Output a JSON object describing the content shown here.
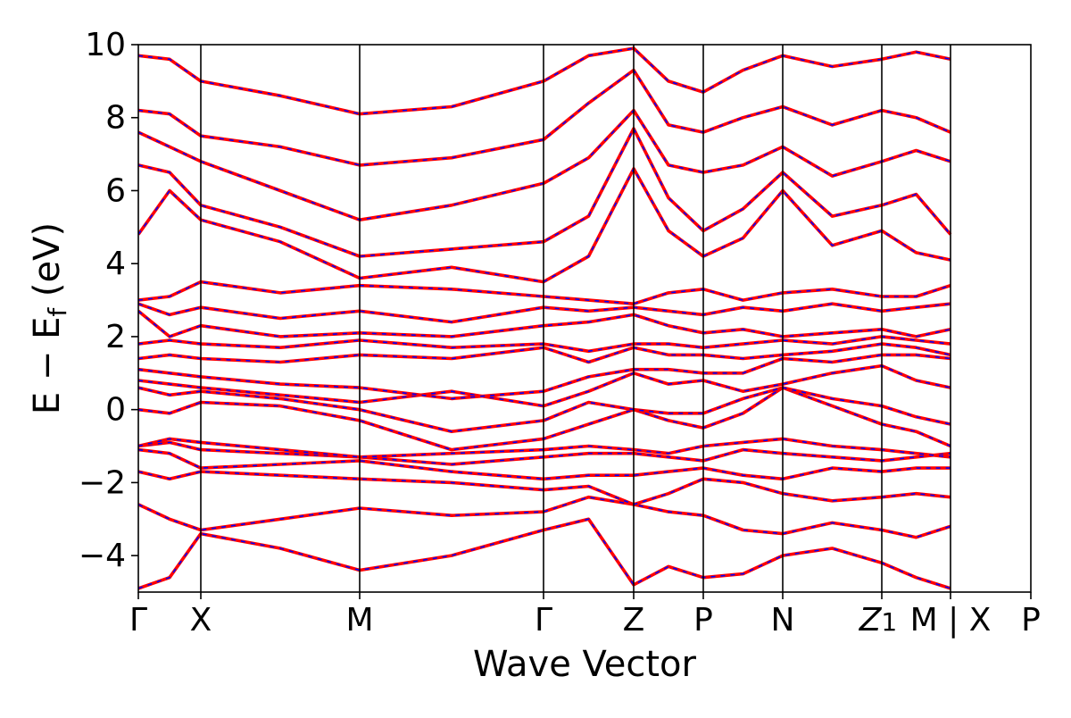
{
  "chart_data": {
    "type": "line",
    "title": "",
    "xlabel": "Wave Vector",
    "ylabel": {
      "main": "E − E",
      "sub": "f",
      "unit": " (eV)"
    },
    "ylim": [
      -5,
      10
    ],
    "yticks": [
      {
        "value": 10,
        "label": "10"
      },
      {
        "value": 8,
        "label": "8"
      },
      {
        "value": 6,
        "label": "6"
      },
      {
        "value": 4,
        "label": "4"
      },
      {
        "value": 2,
        "label": "2"
      },
      {
        "value": 0,
        "label": "0"
      },
      {
        "value": -2,
        "label": "−2"
      },
      {
        "value": -4,
        "label": "−4"
      }
    ],
    "xlim": [
      0,
      1
    ],
    "kpoints": [
      {
        "pos": 0.0,
        "label": "Γ",
        "sub": ""
      },
      {
        "pos": 0.07,
        "label": "X",
        "sub": ""
      },
      {
        "pos": 0.248,
        "label": "M",
        "sub": ""
      },
      {
        "pos": 0.454,
        "label": "Γ",
        "sub": ""
      },
      {
        "pos": 0.555,
        "label": "Z",
        "sub": ""
      },
      {
        "pos": 0.633,
        "label": "P",
        "sub": ""
      },
      {
        "pos": 0.722,
        "label": "N",
        "sub": ""
      },
      {
        "pos": 0.833,
        "label": "Z",
        "sub": "1"
      },
      {
        "pos": 0.91,
        "label": "M | X",
        "sub": ""
      },
      {
        "pos": 1.0,
        "label": "P",
        "sub": ""
      }
    ],
    "grid": false,
    "legend": "none",
    "series_styles": [
      {
        "color": "#ff0000",
        "style": "solid"
      },
      {
        "color": "#0000ff",
        "style": "dashed"
      }
    ],
    "bands": [
      [
        -4.9,
        -4.6,
        -3.4,
        -3.8,
        -4.4,
        -4.0,
        -3.3,
        -3.0,
        -4.8,
        -4.3,
        -4.6,
        -4.5,
        -4.0,
        -3.8,
        -4.2,
        -4.6,
        -4.9
      ],
      [
        -2.6,
        -3.0,
        -3.3,
        -3.0,
        -2.7,
        -2.9,
        -2.8,
        -2.4,
        -2.6,
        -2.8,
        -2.9,
        -3.3,
        -3.4,
        -3.1,
        -3.3,
        -3.5,
        -3.2
      ],
      [
        -1.7,
        -1.9,
        -1.7,
        -1.8,
        -1.9,
        -2.0,
        -2.2,
        -2.1,
        -2.6,
        -2.3,
        -1.9,
        -2.0,
        -2.3,
        -2.5,
        -2.4,
        -2.3,
        -2.4
      ],
      [
        -1.1,
        -1.2,
        -1.6,
        -1.5,
        -1.4,
        -1.7,
        -1.9,
        -1.8,
        -1.8,
        -1.7,
        -1.6,
        -1.8,
        -1.9,
        -1.6,
        -1.7,
        -1.6,
        -1.6
      ],
      [
        -1.0,
        -0.9,
        -1.1,
        -1.2,
        -1.3,
        -1.5,
        -1.3,
        -1.2,
        -1.2,
        -1.3,
        -1.4,
        -1.1,
        -1.2,
        -1.3,
        -1.4,
        -1.3,
        -1.2
      ],
      [
        -1.0,
        -0.8,
        -0.9,
        -1.1,
        -1.3,
        -1.2,
        -1.1,
        -1.0,
        -1.1,
        -1.2,
        -1.0,
        -0.9,
        -0.8,
        -1.0,
        -1.1,
        -1.2,
        -1.3
      ],
      [
        0.0,
        -0.1,
        0.2,
        0.1,
        -0.3,
        -1.1,
        -0.8,
        -0.4,
        0.0,
        -0.3,
        -0.5,
        -0.1,
        0.6,
        0.1,
        -0.4,
        -0.6,
        -1.0
      ],
      [
        0.6,
        0.4,
        0.5,
        0.3,
        0.0,
        -0.6,
        -0.3,
        0.2,
        0.0,
        -0.1,
        -0.1,
        0.3,
        0.6,
        0.3,
        0.1,
        -0.2,
        -0.4
      ],
      [
        0.8,
        0.7,
        0.6,
        0.4,
        0.2,
        0.5,
        0.1,
        0.5,
        1.0,
        0.7,
        0.8,
        0.5,
        0.7,
        1.0,
        1.2,
        0.8,
        0.6
      ],
      [
        1.1,
        1.0,
        0.9,
        0.7,
        0.6,
        0.3,
        0.5,
        0.9,
        1.1,
        1.1,
        1.0,
        1.0,
        1.4,
        1.3,
        1.5,
        1.5,
        1.4
      ],
      [
        1.4,
        1.5,
        1.4,
        1.3,
        1.5,
        1.4,
        1.7,
        1.3,
        1.7,
        1.5,
        1.5,
        1.4,
        1.5,
        1.6,
        1.8,
        1.7,
        1.5
      ],
      [
        1.8,
        1.9,
        1.8,
        1.7,
        1.9,
        1.7,
        1.8,
        1.6,
        1.8,
        1.8,
        1.7,
        1.8,
        1.9,
        1.8,
        2.0,
        1.9,
        1.8
      ],
      [
        2.7,
        2.0,
        2.3,
        2.0,
        2.1,
        2.0,
        2.3,
        2.4,
        2.6,
        2.3,
        2.1,
        2.2,
        2.0,
        2.1,
        2.2,
        2.0,
        2.2
      ],
      [
        2.9,
        2.6,
        2.8,
        2.5,
        2.7,
        2.4,
        2.8,
        2.7,
        2.8,
        2.7,
        2.6,
        2.8,
        2.7,
        2.9,
        2.7,
        2.8,
        2.9
      ],
      [
        3.0,
        3.1,
        3.5,
        3.2,
        3.4,
        3.3,
        3.1,
        3.0,
        2.9,
        3.2,
        3.3,
        3.0,
        3.2,
        3.3,
        3.1,
        3.1,
        3.4
      ],
      [
        4.8,
        6.0,
        5.2,
        4.6,
        3.6,
        3.9,
        3.5,
        4.2,
        6.6,
        4.9,
        4.2,
        4.7,
        6.0,
        4.5,
        4.9,
        4.3,
        4.1
      ],
      [
        6.7,
        6.5,
        5.6,
        5.0,
        4.2,
        4.4,
        4.6,
        5.3,
        7.7,
        5.8,
        4.9,
        5.5,
        6.5,
        5.3,
        5.6,
        5.9,
        4.8
      ],
      [
        7.6,
        7.2,
        6.8,
        6.0,
        5.2,
        5.6,
        6.2,
        6.9,
        8.2,
        6.7,
        6.5,
        6.7,
        7.2,
        6.4,
        6.8,
        7.1,
        6.8
      ],
      [
        8.2,
        8.1,
        7.5,
        7.2,
        6.7,
        6.9,
        7.4,
        8.4,
        9.3,
        7.8,
        7.6,
        8.0,
        8.3,
        7.8,
        8.2,
        8.0,
        7.6
      ],
      [
        9.7,
        9.6,
        9.0,
        8.6,
        8.1,
        8.3,
        9.0,
        9.7,
        9.9,
        9.0,
        8.7,
        9.3,
        9.7,
        9.4,
        9.6,
        9.8,
        9.6
      ]
    ]
  }
}
